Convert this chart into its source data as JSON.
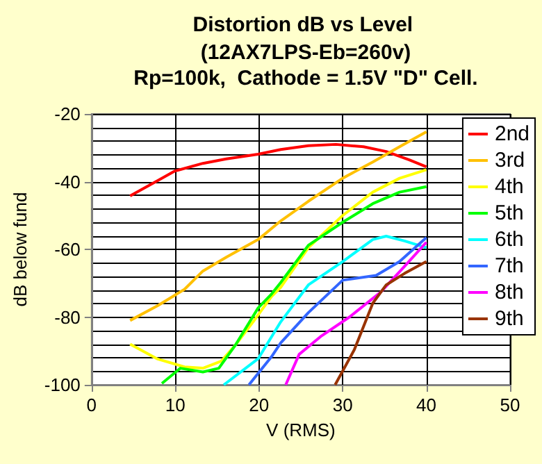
{
  "chart_data": {
    "type": "line",
    "title": "Distortion dB vs Level (12AX7LPS-Eb=260v)",
    "subtitle": "Rp=100k,  Cathode = 1.5V \"D\" Cell.",
    "xlabel": "V (RMS)",
    "ylabel": "dB below fund",
    "xlim": [
      0,
      50
    ],
    "xticks": [
      0,
      10,
      20,
      30,
      40,
      50
    ],
    "ylim": [
      -100,
      -20
    ],
    "yticks": [
      -100,
      -80,
      -60,
      -40,
      -20
    ],
    "grid": true,
    "legend": "right",
    "marker": "none",
    "line_style": "solid",
    "series": [
      {
        "name": "2nd",
        "color": "#ff0000",
        "x": [
          4.6,
          7.9,
          9.9,
          13.3,
          16.1,
          19.9,
          22.6,
          25.9,
          29.2,
          32.5,
          35.2,
          37.9,
          40
        ],
        "values": [
          -44.2,
          -39.7,
          -36.9,
          -34.6,
          -33.3,
          -31.9,
          -30.5,
          -29.4,
          -29.0,
          -29.7,
          -31.1,
          -33.5,
          -35.6
        ]
      },
      {
        "name": "3rd",
        "color": "#ffc000",
        "x": [
          4.6,
          7.9,
          11.1,
          13.3,
          16.1,
          19.9,
          22.6,
          25.9,
          30.0,
          33.6,
          36.8,
          40
        ],
        "values": [
          -81.0,
          -76.6,
          -71.8,
          -66.4,
          -62.3,
          -57.1,
          -51.6,
          -45.8,
          -39.0,
          -34.2,
          -29.7,
          -25.3
        ]
      },
      {
        "name": "4th",
        "color": "#ffff00",
        "x": [
          4.6,
          7.9,
          11.1,
          13.3,
          15.5,
          17.2,
          19.3,
          21.5,
          22.6,
          25.9,
          30.0,
          33.6,
          36.8,
          40
        ],
        "values": [
          -88.0,
          -92.4,
          -94.7,
          -95.1,
          -93.0,
          -88.2,
          -81.4,
          -73.9,
          -71.2,
          -59.5,
          -50.0,
          -43.1,
          -39.0,
          -36.5
        ]
      },
      {
        "name": "5th",
        "color": "#00ff00",
        "x": [
          8.4,
          10.6,
          13.3,
          15.2,
          17.2,
          19.9,
          21.5,
          22.6,
          25.9,
          30.0,
          33.6,
          36.8,
          40
        ],
        "values": [
          -99.6,
          -95.1,
          -96.2,
          -95.1,
          -88.2,
          -77.3,
          -73.2,
          -69.8,
          -58.8,
          -52.0,
          -46.5,
          -43.1,
          -41.5
        ]
      },
      {
        "name": "6th",
        "color": "#00ffff",
        "x": [
          15.8,
          19.9,
          22.6,
          25.9,
          30.0,
          33.6,
          35.2,
          37.4,
          40
        ],
        "values": [
          -100,
          -92.3,
          -81.4,
          -70.5,
          -63.6,
          -57.1,
          -56.1,
          -57.5,
          -59.5
        ]
      },
      {
        "name": "7th",
        "color": "#3366ff",
        "x": [
          18.8,
          21.5,
          22.6,
          25.9,
          30.0,
          34.0,
          36.8,
          40
        ],
        "values": [
          -100,
          -91.7,
          -87.6,
          -78.7,
          -69.1,
          -67.7,
          -63.6,
          -56.5
        ]
      },
      {
        "name": "8th",
        "color": "#ff00ff",
        "x": [
          23.2,
          24.8,
          27.5,
          30.8,
          34.6,
          37.4,
          40
        ],
        "values": [
          -100,
          -91.0,
          -85.5,
          -80.0,
          -72.5,
          -65.0,
          -57.9
        ]
      },
      {
        "name": "9th",
        "color": "#993300",
        "x": [
          29.1,
          31.4,
          33.6,
          35.2,
          37.4,
          40
        ],
        "values": [
          -100,
          -89.6,
          -75.9,
          -70.5,
          -67.1,
          -63.6
        ]
      }
    ]
  }
}
